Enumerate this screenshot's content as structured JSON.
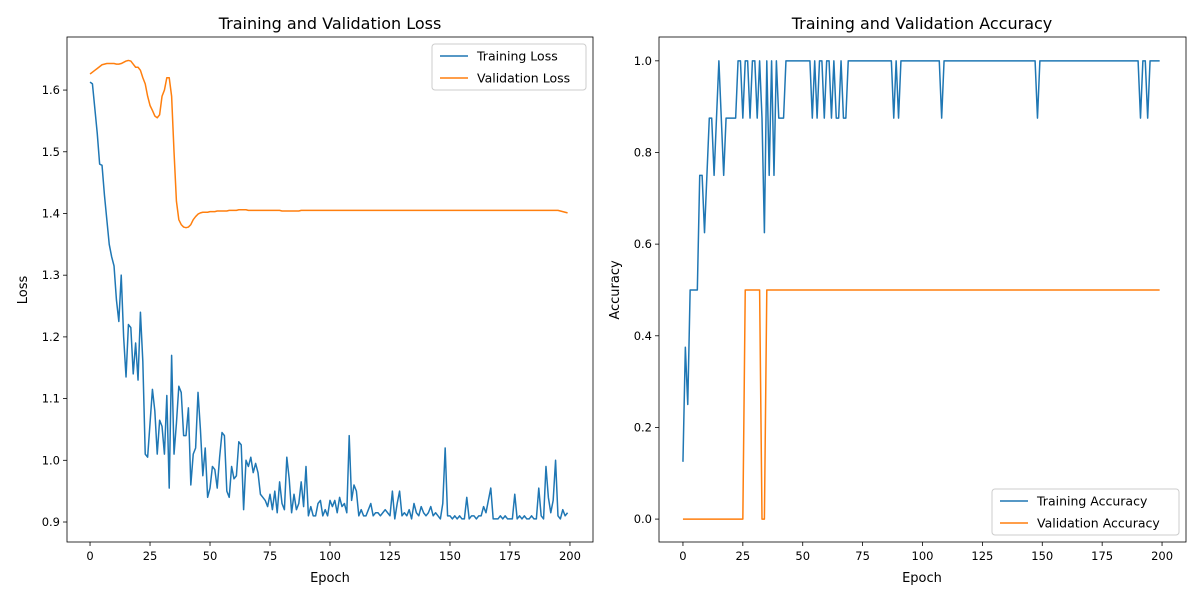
{
  "chart_data": [
    {
      "type": "line",
      "title": "Training and Validation Loss",
      "xlabel": "Epoch",
      "ylabel": "Loss",
      "xlim": [
        -9.6,
        209.6
      ],
      "ylim": [
        0.8676,
        1.686
      ],
      "xticks": [
        0,
        25,
        50,
        75,
        100,
        125,
        150,
        175,
        200
      ],
      "yticks": [
        0.9,
        1.0,
        1.1,
        1.2,
        1.3,
        1.4,
        1.5,
        1.6
      ],
      "ytick_labels": [
        "0.9",
        "1.0",
        "1.1",
        "1.2",
        "1.3",
        "1.4",
        "1.5",
        "1.6"
      ],
      "grid": false,
      "legend": "upper right",
      "series": [
        {
          "name": "Training Loss",
          "color": "#1f77b4",
          "values": [
            1.613,
            1.61,
            1.57,
            1.53,
            1.48,
            1.478,
            1.43,
            1.39,
            1.35,
            1.33,
            1.315,
            1.26,
            1.225,
            1.3,
            1.2,
            1.135,
            1.22,
            1.215,
            1.14,
            1.19,
            1.13,
            1.24,
            1.16,
            1.01,
            1.005,
            1.06,
            1.115,
            1.08,
            1.01,
            1.065,
            1.055,
            1.01,
            1.105,
            0.955,
            1.17,
            1.01,
            1.06,
            1.12,
            1.11,
            1.04,
            1.04,
            1.085,
            0.96,
            1.01,
            1.02,
            1.11,
            1.05,
            0.975,
            1.02,
            0.94,
            0.955,
            0.99,
            0.985,
            0.955,
            1.005,
            1.045,
            1.04,
            0.95,
            0.94,
            0.99,
            0.97,
            0.975,
            1.03,
            1.025,
            0.92,
            1.0,
            0.99,
            1.005,
            0.98,
            0.995,
            0.98,
            0.945,
            0.94,
            0.935,
            0.925,
            0.945,
            0.92,
            0.95,
            0.915,
            0.965,
            0.93,
            0.92,
            1.005,
            0.97,
            0.915,
            0.945,
            0.92,
            0.93,
            0.965,
            0.925,
            0.99,
            0.91,
            0.925,
            0.91,
            0.91,
            0.93,
            0.935,
            0.91,
            0.92,
            0.91,
            0.935,
            0.925,
            0.935,
            0.915,
            0.94,
            0.925,
            0.93,
            0.915,
            1.04,
            0.935,
            0.96,
            0.95,
            0.91,
            0.92,
            0.91,
            0.91,
            0.92,
            0.93,
            0.91,
            0.915,
            0.915,
            0.91,
            0.915,
            0.92,
            0.915,
            0.91,
            0.95,
            0.905,
            0.93,
            0.95,
            0.91,
            0.915,
            0.91,
            0.92,
            0.905,
            0.93,
            0.915,
            0.91,
            0.925,
            0.915,
            0.91,
            0.915,
            0.925,
            0.91,
            0.915,
            0.91,
            0.905,
            0.93,
            1.02,
            0.91,
            0.91,
            0.905,
            0.91,
            0.905,
            0.91,
            0.905,
            0.905,
            0.94,
            0.905,
            0.91,
            0.91,
            0.905,
            0.91,
            0.91,
            0.925,
            0.915,
            0.935,
            0.955,
            0.905,
            0.905,
            0.905,
            0.91,
            0.905,
            0.91,
            0.905,
            0.905,
            0.905,
            0.945,
            0.905,
            0.91,
            0.905,
            0.91,
            0.905,
            0.905,
            0.91,
            0.905,
            0.905,
            0.955,
            0.91,
            0.905,
            0.99,
            0.94,
            0.915,
            0.935,
            1.0,
            0.91,
            0.905,
            0.92,
            0.91,
            0.915
          ]
        },
        {
          "name": "Validation Loss",
          "color": "#ff7f0e",
          "values": [
            1.626,
            1.629,
            1.632,
            1.635,
            1.638,
            1.641,
            1.642,
            1.643,
            1.643,
            1.643,
            1.643,
            1.642,
            1.642,
            1.643,
            1.645,
            1.647,
            1.648,
            1.647,
            1.642,
            1.637,
            1.637,
            1.632,
            1.62,
            1.61,
            1.59,
            1.575,
            1.567,
            1.558,
            1.555,
            1.56,
            1.59,
            1.6,
            1.62,
            1.62,
            1.59,
            1.5,
            1.42,
            1.39,
            1.382,
            1.378,
            1.377,
            1.378,
            1.382,
            1.39,
            1.395,
            1.399,
            1.401,
            1.402,
            1.402,
            1.402,
            1.403,
            1.403,
            1.403,
            1.404,
            1.404,
            1.404,
            1.404,
            1.404,
            1.405,
            1.405,
            1.405,
            1.405,
            1.406,
            1.406,
            1.406,
            1.406,
            1.405,
            1.405,
            1.405,
            1.405,
            1.405,
            1.405,
            1.405,
            1.405,
            1.405,
            1.405,
            1.405,
            1.405,
            1.405,
            1.405,
            1.404,
            1.404,
            1.404,
            1.404,
            1.404,
            1.404,
            1.404,
            1.404,
            1.405,
            1.405,
            1.405,
            1.405,
            1.405,
            1.405,
            1.405,
            1.405,
            1.405,
            1.405,
            1.405,
            1.405,
            1.405,
            1.405,
            1.405,
            1.405,
            1.405,
            1.405,
            1.405,
            1.405,
            1.405,
            1.405,
            1.405,
            1.405,
            1.405,
            1.405,
            1.405,
            1.405,
            1.405,
            1.405,
            1.405,
            1.405,
            1.405,
            1.405,
            1.405,
            1.405,
            1.405,
            1.405,
            1.405,
            1.405,
            1.405,
            1.405,
            1.405,
            1.405,
            1.405,
            1.405,
            1.405,
            1.405,
            1.405,
            1.405,
            1.405,
            1.405,
            1.405,
            1.405,
            1.405,
            1.405,
            1.405,
            1.405,
            1.405,
            1.405,
            1.405,
            1.405,
            1.405,
            1.405,
            1.405,
            1.405,
            1.405,
            1.405,
            1.405,
            1.405,
            1.405,
            1.405,
            1.405,
            1.405,
            1.405,
            1.405,
            1.405,
            1.405,
            1.405,
            1.405,
            1.405,
            1.405,
            1.405,
            1.405,
            1.405,
            1.405,
            1.405,
            1.405,
            1.405,
            1.405,
            1.405,
            1.405,
            1.405,
            1.405,
            1.405,
            1.405,
            1.405,
            1.405,
            1.405,
            1.405,
            1.405,
            1.405,
            1.405,
            1.405,
            1.405,
            1.405,
            1.405,
            1.405,
            1.404,
            1.403,
            1.402,
            1.401
          ]
        }
      ]
    },
    {
      "type": "line",
      "title": "Training and Validation Accuracy",
      "xlabel": "Epoch",
      "ylabel": "Accuracy",
      "xlim": [
        -10,
        210
      ],
      "ylim": [
        -0.05,
        1.052
      ],
      "xticks": [
        0,
        25,
        50,
        75,
        100,
        125,
        150,
        175,
        200
      ],
      "yticks": [
        0.0,
        0.2,
        0.4,
        0.6,
        0.8,
        1.0
      ],
      "ytick_labels": [
        "0.0",
        "0.2",
        "0.4",
        "0.6",
        "0.8",
        "1.0"
      ],
      "grid": false,
      "legend": "lower right",
      "series": [
        {
          "name": "Training Accuracy",
          "color": "#1f77b4",
          "values": [
            0.125,
            0.375,
            0.25,
            0.5,
            0.5,
            0.5,
            0.5,
            0.75,
            0.75,
            0.625,
            0.75,
            0.875,
            0.875,
            0.75,
            0.875,
            1,
            0.875,
            0.75,
            0.875,
            0.875,
            0.875,
            0.875,
            0.875,
            1,
            1,
            0.875,
            1,
            1,
            0.875,
            1,
            1,
            0.875,
            1,
            0.875,
            0.625,
            1,
            0.75,
            1,
            0.75,
            1,
            0.875,
            0.875,
            0.875,
            1,
            1,
            1,
            1,
            1,
            1,
            1,
            1,
            1,
            1,
            1,
            0.875,
            1,
            0.875,
            1,
            1,
            0.875,
            1,
            1,
            0.875,
            1,
            0.875,
            0.875,
            1,
            0.875,
            0.875,
            1,
            1,
            1,
            1,
            1,
            1,
            1,
            1,
            1,
            1,
            1,
            1,
            1,
            1,
            1,
            1,
            1,
            1,
            1,
            0.875,
            1,
            0.875,
            1,
            1,
            1,
            1,
            1,
            1,
            1,
            1,
            1,
            1,
            1,
            1,
            1,
            1,
            1,
            1,
            1,
            0.875,
            1,
            1,
            1,
            1,
            1,
            1,
            1,
            1,
            1,
            1,
            1,
            1,
            1,
            1,
            1,
            1,
            1,
            1,
            1,
            1,
            1,
            1,
            1,
            1,
            1,
            1,
            1,
            1,
            1,
            1,
            1,
            1,
            1,
            1,
            1,
            1,
            1,
            1,
            1,
            0.875,
            1,
            1,
            1,
            1,
            1,
            1,
            1,
            1,
            1,
            1,
            1,
            1,
            1,
            1,
            1,
            1,
            1,
            1,
            1,
            1,
            1,
            1,
            1,
            1,
            1,
            1,
            1,
            1,
            1,
            1,
            1,
            1,
            1,
            1,
            1,
            1,
            1,
            1,
            1,
            1,
            1,
            1,
            0.875,
            1,
            1,
            0.875,
            1,
            1,
            1,
            1,
            1
          ]
        },
        {
          "name": "Validation Accuracy",
          "color": "#ff7f0e",
          "values": [
            0,
            0,
            0,
            0,
            0,
            0,
            0,
            0,
            0,
            0,
            0,
            0,
            0,
            0,
            0,
            0,
            0,
            0,
            0,
            0,
            0,
            0,
            0,
            0,
            0,
            0,
            0.5,
            0.5,
            0.5,
            0.5,
            0.5,
            0.5,
            0.5,
            0,
            0,
            0.5,
            0.5,
            0.5,
            0.5,
            0.5,
            0.5,
            0.5,
            0.5,
            0.5,
            0.5,
            0.5,
            0.5,
            0.5,
            0.5,
            0.5,
            0.5,
            0.5,
            0.5,
            0.5,
            0.5,
            0.5,
            0.5,
            0.5,
            0.5,
            0.5,
            0.5,
            0.5,
            0.5,
            0.5,
            0.5,
            0.5,
            0.5,
            0.5,
            0.5,
            0.5,
            0.5,
            0.5,
            0.5,
            0.5,
            0.5,
            0.5,
            0.5,
            0.5,
            0.5,
            0.5,
            0.5,
            0.5,
            0.5,
            0.5,
            0.5,
            0.5,
            0.5,
            0.5,
            0.5,
            0.5,
            0.5,
            0.5,
            0.5,
            0.5,
            0.5,
            0.5,
            0.5,
            0.5,
            0.5,
            0.5,
            0.5,
            0.5,
            0.5,
            0.5,
            0.5,
            0.5,
            0.5,
            0.5,
            0.5,
            0.5,
            0.5,
            0.5,
            0.5,
            0.5,
            0.5,
            0.5,
            0.5,
            0.5,
            0.5,
            0.5,
            0.5,
            0.5,
            0.5,
            0.5,
            0.5,
            0.5,
            0.5,
            0.5,
            0.5,
            0.5,
            0.5,
            0.5,
            0.5,
            0.5,
            0.5,
            0.5,
            0.5,
            0.5,
            0.5,
            0.5,
            0.5,
            0.5,
            0.5,
            0.5,
            0.5,
            0.5,
            0.5,
            0.5,
            0.5,
            0.5,
            0.5,
            0.5,
            0.5,
            0.5,
            0.5,
            0.5,
            0.5,
            0.5,
            0.5,
            0.5,
            0.5,
            0.5,
            0.5,
            0.5,
            0.5,
            0.5,
            0.5,
            0.5,
            0.5,
            0.5,
            0.5,
            0.5,
            0.5,
            0.5,
            0.5,
            0.5,
            0.5,
            0.5,
            0.5,
            0.5,
            0.5,
            0.5,
            0.5,
            0.5,
            0.5,
            0.5,
            0.5,
            0.5,
            0.5,
            0.5,
            0.5,
            0.5,
            0.5,
            0.5,
            0.5,
            0.5,
            0.5,
            0.5,
            0.5,
            0.5
          ]
        }
      ]
    }
  ]
}
